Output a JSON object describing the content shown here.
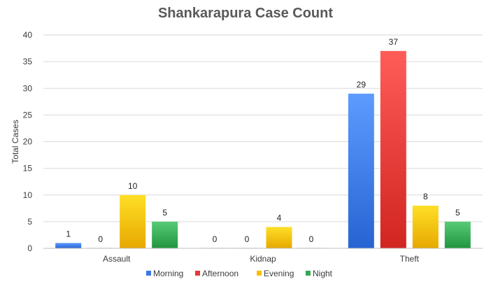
{
  "chart_data": {
    "type": "bar",
    "title": "Shankarapura Case Count",
    "xlabel": "",
    "ylabel": "Total Cases",
    "ylim": [
      0,
      40
    ],
    "yticks": [
      0,
      5,
      10,
      15,
      20,
      25,
      30,
      35,
      40
    ],
    "grid": true,
    "legend_position": "bottom",
    "categories": [
      "Assault",
      "Kidnap",
      "Theft"
    ],
    "series": [
      {
        "name": "Morning",
        "color": "#3b78e7",
        "values": [
          1,
          0,
          29
        ]
      },
      {
        "name": "Afternoon",
        "color": "#e53935",
        "values": [
          0,
          0,
          37
        ]
      },
      {
        "name": "Evening",
        "color": "#fbbc04",
        "values": [
          10,
          4,
          8
        ]
      },
      {
        "name": "Night",
        "color": "#34a853",
        "values": [
          5,
          0,
          5
        ]
      }
    ]
  }
}
